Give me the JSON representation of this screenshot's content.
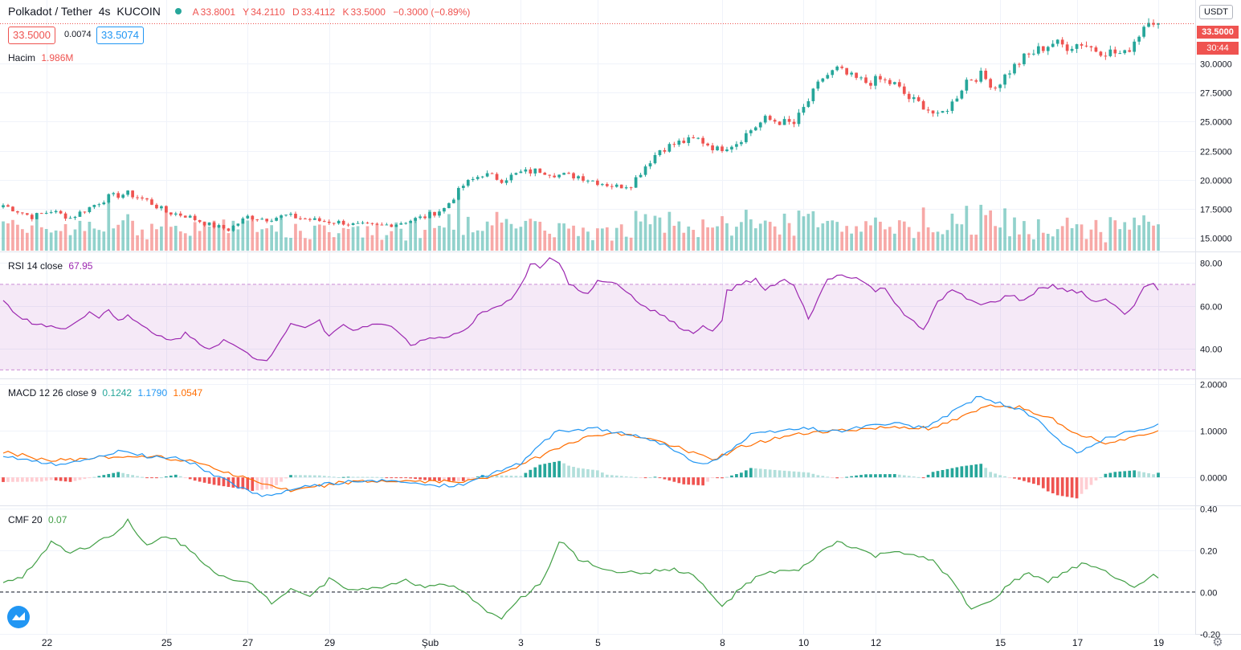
{
  "header": {
    "symbol": "Polkadot / Tether",
    "interval": "4s",
    "exchange": "KUCOIN",
    "open_label": "A",
    "open": "33.8001",
    "high_label": "Y",
    "high": "34.2110",
    "low_label": "D",
    "low": "33.4112",
    "close_label": "K",
    "close": "33.5000",
    "change": "−0.3000 (−0.89%)",
    "bid": "33.5000",
    "spread": "0.0074",
    "ask": "33.5074",
    "volume_label": "Hacim",
    "volume_value": "1.986M",
    "currency_button": "USDT",
    "last_price_tag": "33.5000",
    "countdown_tag": "30:44"
  },
  "colors": {
    "up": "#26a69a",
    "down": "#ef5350",
    "rsi": "#9c27b0",
    "macd": "#2196f3",
    "signal": "#ff6d00",
    "cmf": "#43a047"
  },
  "icons": [
    "tradingview-logo-icon",
    "settings-gear-icon",
    "live-dot-icon"
  ],
  "chart_data": [
    {
      "type": "candlestick",
      "pane": "price",
      "x_ticks": [
        "22",
        "25",
        "27",
        "29",
        "Şub",
        "3",
        "5",
        "8",
        "10",
        "12",
        "15",
        "17",
        "19"
      ],
      "y_ticks": [
        "15.0000",
        "17.5000",
        "20.0000",
        "22.5000",
        "25.0000",
        "27.5000",
        "30.0000"
      ],
      "ylim": [
        13.8,
        35.5
      ],
      "close_path": [
        [
          0,
          17.8
        ],
        [
          6,
          16.8
        ],
        [
          10,
          17.3
        ],
        [
          14,
          16.7
        ],
        [
          18,
          17.6
        ],
        [
          22,
          18.5
        ],
        [
          26,
          18.8
        ],
        [
          30,
          18.2
        ],
        [
          34,
          17.2
        ],
        [
          38,
          16.9
        ],
        [
          43,
          16.1
        ],
        [
          47,
          15.7
        ],
        [
          51,
          16.8
        ],
        [
          55,
          16.6
        ],
        [
          59,
          16.9
        ],
        [
          63,
          16.6
        ],
        [
          67,
          16.4
        ],
        [
          71,
          16.3
        ],
        [
          73,
          16.1
        ],
        [
          78,
          16.0
        ],
        [
          82,
          16.2
        ],
        [
          88,
          16.8
        ],
        [
          92,
          17.5
        ],
        [
          96,
          19.5
        ],
        [
          100,
          20.5
        ],
        [
          104,
          20.0
        ],
        [
          108,
          20.6
        ],
        [
          112,
          20.8
        ],
        [
          116,
          20.4
        ],
        [
          120,
          20.3
        ],
        [
          124,
          19.8
        ],
        [
          128,
          19.4
        ],
        [
          131,
          19.6
        ],
        [
          134,
          21.2
        ],
        [
          137,
          22.6
        ],
        [
          141,
          23.2
        ],
        [
          145,
          23.5
        ],
        [
          149,
          22.6
        ],
        [
          153,
          23.2
        ],
        [
          156,
          24.3
        ],
        [
          159,
          25.2
        ],
        [
          162,
          25.0
        ],
        [
          165,
          24.8
        ],
        [
          168,
          26.8
        ],
        [
          171,
          28.8
        ],
        [
          174,
          29.5
        ],
        [
          177,
          28.8
        ],
        [
          180,
          28.4
        ],
        [
          183,
          28.6
        ],
        [
          186,
          28.2
        ],
        [
          189,
          27.0
        ],
        [
          192,
          26.4
        ],
        [
          195,
          25.4
        ],
        [
          198,
          26.6
        ],
        [
          201,
          28.6
        ],
        [
          204,
          29.0
        ],
        [
          207,
          28.0
        ],
        [
          210,
          29.4
        ],
        [
          213,
          30.5
        ],
        [
          216,
          31.2
        ],
        [
          219,
          31.8
        ],
        [
          222,
          31.5
        ],
        [
          225,
          31.8
        ],
        [
          228,
          31.2
        ],
        [
          231,
          31.0
        ],
        [
          234,
          30.8
        ],
        [
          237,
          32.6
        ],
        [
          239,
          34.0
        ],
        [
          241,
          33.5
        ]
      ],
      "bars_count": 242,
      "volume_ylim": [
        0,
        5.5
      ]
    },
    {
      "type": "line",
      "pane": "RSI",
      "title": "RSI 14 close",
      "value": "67.95",
      "y_ticks": [
        "40.00",
        "60.00",
        "80.00"
      ],
      "ylim": [
        26,
        85
      ],
      "bands": [
        30,
        70
      ],
      "path": [
        [
          0,
          63
        ],
        [
          3,
          55
        ],
        [
          6,
          52
        ],
        [
          9,
          51
        ],
        [
          12,
          49
        ],
        [
          16,
          53
        ],
        [
          18,
          58
        ],
        [
          20,
          54
        ],
        [
          22,
          59
        ],
        [
          24,
          53
        ],
        [
          26,
          55
        ],
        [
          28,
          52
        ],
        [
          32,
          46
        ],
        [
          36,
          44
        ],
        [
          38,
          47
        ],
        [
          40,
          44
        ],
        [
          43,
          40
        ],
        [
          46,
          44
        ],
        [
          49,
          40
        ],
        [
          52,
          36
        ],
        [
          55,
          34
        ],
        [
          58,
          45
        ],
        [
          60,
          52
        ],
        [
          63,
          50
        ],
        [
          66,
          53
        ],
        [
          68,
          45
        ],
        [
          71,
          52
        ],
        [
          73,
          49
        ],
        [
          76,
          50
        ],
        [
          79,
          52
        ],
        [
          82,
          49
        ],
        [
          85,
          42
        ],
        [
          88,
          44
        ],
        [
          91,
          45
        ],
        [
          94,
          46
        ],
        [
          97,
          49
        ],
        [
          99,
          55
        ],
        [
          101,
          58
        ],
        [
          103,
          60
        ],
        [
          106,
          63
        ],
        [
          108,
          69
        ],
        [
          110,
          80
        ],
        [
          112,
          78
        ],
        [
          114,
          82
        ],
        [
          116,
          80
        ],
        [
          118,
          70
        ],
        [
          120,
          68
        ],
        [
          122,
          65
        ],
        [
          124,
          72
        ],
        [
          128,
          71
        ],
        [
          132,
          62
        ],
        [
          134,
          60
        ],
        [
          136,
          57
        ],
        [
          138,
          55
        ],
        [
          140,
          52
        ],
        [
          142,
          49
        ],
        [
          144,
          47
        ],
        [
          146,
          50
        ],
        [
          148,
          48
        ],
        [
          150,
          53
        ],
        [
          151,
          67
        ],
        [
          153,
          69
        ],
        [
          155,
          71
        ],
        [
          157,
          72
        ],
        [
          159,
          67
        ],
        [
          161,
          70
        ],
        [
          163,
          72
        ],
        [
          165,
          69
        ],
        [
          168,
          54
        ],
        [
          170,
          63
        ],
        [
          172,
          72
        ],
        [
          174,
          74
        ],
        [
          176,
          74
        ],
        [
          178,
          73
        ],
        [
          180,
          70
        ],
        [
          182,
          67
        ],
        [
          184,
          68
        ],
        [
          186,
          62
        ],
        [
          188,
          56
        ],
        [
          190,
          52
        ],
        [
          192,
          48
        ],
        [
          195,
          62
        ],
        [
          198,
          67
        ],
        [
          201,
          64
        ],
        [
          204,
          60
        ],
        [
          207,
          62
        ],
        [
          210,
          65
        ],
        [
          213,
          62
        ],
        [
          216,
          68
        ],
        [
          219,
          69
        ],
        [
          222,
          67
        ],
        [
          225,
          66
        ],
        [
          228,
          62
        ],
        [
          230,
          63
        ],
        [
          232,
          61
        ],
        [
          234,
          56
        ],
        [
          236,
          60
        ],
        [
          238,
          68
        ],
        [
          240,
          70
        ],
        [
          241,
          68
        ]
      ]
    },
    {
      "type": "line",
      "pane": "MACD",
      "title": "MACD 12 26 close 9",
      "values": [
        "0.1242",
        "1.1790",
        "1.0547"
      ],
      "y_ticks": [
        "0.0000",
        "1.0000",
        "2.0000"
      ],
      "ylim": [
        -0.6,
        2.1
      ],
      "macd_path": [
        [
          0,
          0.45
        ],
        [
          8,
          0.3
        ],
        [
          14,
          0.28
        ],
        [
          20,
          0.45
        ],
        [
          24,
          0.55
        ],
        [
          28,
          0.48
        ],
        [
          32,
          0.42
        ],
        [
          36,
          0.45
        ],
        [
          40,
          0.28
        ],
        [
          44,
          0.05
        ],
        [
          48,
          -0.15
        ],
        [
          52,
          -0.35
        ],
        [
          56,
          -0.42
        ],
        [
          60,
          -0.25
        ],
        [
          66,
          -0.15
        ],
        [
          72,
          -0.1
        ],
        [
          78,
          -0.08
        ],
        [
          84,
          -0.1
        ],
        [
          90,
          -0.18
        ],
        [
          96,
          -0.15
        ],
        [
          100,
          0.0
        ],
        [
          104,
          0.15
        ],
        [
          108,
          0.3
        ],
        [
          112,
          0.72
        ],
        [
          116,
          1.0
        ],
        [
          120,
          1.0
        ],
        [
          124,
          1.05
        ],
        [
          130,
          0.92
        ],
        [
          136,
          0.8
        ],
        [
          142,
          0.45
        ],
        [
          146,
          0.28
        ],
        [
          150,
          0.45
        ],
        [
          156,
          0.9
        ],
        [
          162,
          1.0
        ],
        [
          168,
          1.05
        ],
        [
          174,
          0.98
        ],
        [
          180,
          1.1
        ],
        [
          186,
          1.15
        ],
        [
          192,
          1.05
        ],
        [
          198,
          1.4
        ],
        [
          204,
          1.75
        ],
        [
          208,
          1.58
        ],
        [
          212,
          1.45
        ],
        [
          216,
          1.2
        ],
        [
          220,
          0.8
        ],
        [
          224,
          0.5
        ],
        [
          228,
          0.75
        ],
        [
          232,
          0.9
        ],
        [
          236,
          1.0
        ],
        [
          240,
          1.05
        ],
        [
          242,
          1.18
        ]
      ],
      "signal_path": [
        [
          0,
          0.55
        ],
        [
          10,
          0.35
        ],
        [
          20,
          0.42
        ],
        [
          30,
          0.46
        ],
        [
          40,
          0.35
        ],
        [
          50,
          0.0
        ],
        [
          60,
          -0.3
        ],
        [
          70,
          -0.12
        ],
        [
          80,
          -0.08
        ],
        [
          90,
          -0.1
        ],
        [
          100,
          -0.05
        ],
        [
          110,
          0.35
        ],
        [
          118,
          0.75
        ],
        [
          126,
          0.95
        ],
        [
          134,
          0.85
        ],
        [
          142,
          0.6
        ],
        [
          148,
          0.38
        ],
        [
          154,
          0.65
        ],
        [
          162,
          0.85
        ],
        [
          170,
          0.98
        ],
        [
          178,
          1.02
        ],
        [
          186,
          1.08
        ],
        [
          194,
          1.05
        ],
        [
          200,
          1.28
        ],
        [
          206,
          1.55
        ],
        [
          212,
          1.5
        ],
        [
          218,
          1.3
        ],
        [
          224,
          0.95
        ],
        [
          230,
          0.75
        ],
        [
          236,
          0.85
        ],
        [
          242,
          1.05
        ]
      ],
      "hist_scale": 1
    },
    {
      "type": "line",
      "pane": "CMF",
      "title": "CMF 20",
      "value": "0.07",
      "y_ticks": [
        "-0.20",
        "0.00",
        "0.20",
        "0.40"
      ],
      "ylim": [
        -0.2,
        0.41
      ],
      "zero_line": 0,
      "path": [
        [
          0,
          0.05
        ],
        [
          4,
          0.07
        ],
        [
          8,
          0.18
        ],
        [
          10,
          0.24
        ],
        [
          14,
          0.19
        ],
        [
          18,
          0.22
        ],
        [
          22,
          0.27
        ],
        [
          24,
          0.29
        ],
        [
          26,
          0.34
        ],
        [
          28,
          0.27
        ],
        [
          30,
          0.22
        ],
        [
          34,
          0.27
        ],
        [
          36,
          0.25
        ],
        [
          40,
          0.18
        ],
        [
          44,
          0.1
        ],
        [
          48,
          0.05
        ],
        [
          52,
          0.04
        ],
        [
          56,
          -0.05
        ],
        [
          60,
          0.02
        ],
        [
          64,
          -0.02
        ],
        [
          68,
          0.06
        ],
        [
          72,
          0.02
        ],
        [
          76,
          0.01
        ],
        [
          80,
          0.03
        ],
        [
          84,
          0.06
        ],
        [
          88,
          0.02
        ],
        [
          92,
          0.04
        ],
        [
          96,
          0.0
        ],
        [
          100,
          -0.08
        ],
        [
          104,
          -0.12
        ],
        [
          108,
          -0.03
        ],
        [
          112,
          0.04
        ],
        [
          114,
          0.12
        ],
        [
          116,
          0.24
        ],
        [
          118,
          0.21
        ],
        [
          120,
          0.16
        ],
        [
          124,
          0.12
        ],
        [
          128,
          0.1
        ],
        [
          132,
          0.09
        ],
        [
          136,
          0.1
        ],
        [
          140,
          0.11
        ],
        [
          144,
          0.08
        ],
        [
          148,
          -0.02
        ],
        [
          150,
          -0.07
        ],
        [
          154,
          0.02
        ],
        [
          158,
          0.08
        ],
        [
          162,
          0.1
        ],
        [
          166,
          0.1
        ],
        [
          170,
          0.18
        ],
        [
          174,
          0.24
        ],
        [
          178,
          0.21
        ],
        [
          182,
          0.17
        ],
        [
          186,
          0.2
        ],
        [
          190,
          0.17
        ],
        [
          194,
          0.15
        ],
        [
          198,
          0.05
        ],
        [
          202,
          -0.08
        ],
        [
          206,
          -0.05
        ],
        [
          210,
          0.04
        ],
        [
          214,
          0.09
        ],
        [
          218,
          0.05
        ],
        [
          222,
          0.1
        ],
        [
          226,
          0.14
        ],
        [
          230,
          0.1
        ],
        [
          234,
          0.05
        ],
        [
          236,
          0.02
        ],
        [
          238,
          0.04
        ],
        [
          240,
          0.08
        ],
        [
          242,
          0.07
        ]
      ]
    }
  ]
}
